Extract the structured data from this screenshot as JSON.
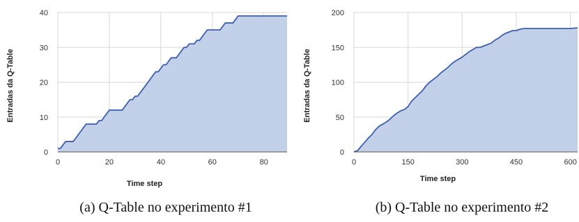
{
  "chart_data": [
    {
      "type": "area",
      "xlabel": "Time step",
      "ylabel": "Entradas da Q-Table",
      "caption": "(a)  Q-Table no experimento #1",
      "xlim": [
        0,
        89
      ],
      "ylim": [
        0,
        40
      ],
      "xticks": [
        0,
        20,
        40,
        60,
        80
      ],
      "yticks": [
        0,
        10,
        20,
        30,
        40
      ],
      "grid": true,
      "colors": {
        "line": "#3b5fa8",
        "fill": "#c3d0ea",
        "grid": "#d8d8d8"
      },
      "series": [
        {
          "x": [
            0,
            1,
            2,
            3,
            4,
            5,
            6,
            7,
            8,
            9,
            10,
            11,
            12,
            13,
            14,
            15,
            16,
            17,
            18,
            19,
            20,
            21,
            22,
            23,
            24,
            25,
            26,
            27,
            28,
            29,
            30,
            31,
            32,
            33,
            34,
            35,
            36,
            37,
            38,
            39,
            40,
            41,
            42,
            43,
            44,
            45,
            46,
            47,
            48,
            49,
            50,
            51,
            52,
            53,
            54,
            55,
            56,
            57,
            58,
            59,
            60,
            61,
            62,
            63,
            64,
            65,
            66,
            67,
            68,
            69,
            70,
            71,
            72,
            73,
            74,
            75,
            76,
            77,
            78,
            79,
            80,
            81,
            82,
            83,
            84,
            85,
            86,
            87,
            88,
            89
          ],
          "y": [
            1,
            1,
            2,
            3,
            3,
            3,
            3,
            4,
            5,
            6,
            7,
            8,
            8,
            8,
            8,
            8,
            9,
            9,
            10,
            11,
            12,
            12,
            12,
            12,
            12,
            12,
            13,
            14,
            15,
            15,
            16,
            16,
            17,
            18,
            19,
            20,
            21,
            22,
            23,
            23,
            24,
            25,
            25,
            26,
            27,
            27,
            27,
            28,
            29,
            30,
            30,
            31,
            31,
            31,
            32,
            32,
            33,
            34,
            35,
            35,
            35,
            35,
            35,
            35,
            36,
            37,
            37,
            37,
            37,
            38,
            39,
            39,
            39,
            39,
            39,
            39,
            39,
            39,
            39,
            39,
            39,
            39,
            39,
            39,
            39,
            39,
            39,
            39,
            39,
            39
          ]
        }
      ]
    },
    {
      "type": "area",
      "xlabel": "Time step",
      "ylabel": "Entradas da Q-Table",
      "caption": "(b)  Q-Table no experimento #2",
      "xlim": [
        0,
        620
      ],
      "ylim": [
        0,
        200
      ],
      "xticks": [
        0,
        150,
        300,
        450,
        600
      ],
      "yticks": [
        0,
        50,
        100,
        150,
        200
      ],
      "grid": true,
      "colors": {
        "line": "#3b5fa8",
        "fill": "#c3d0ea",
        "grid": "#d8d8d8"
      },
      "series": [
        {
          "x": [
            0,
            10,
            20,
            30,
            40,
            50,
            60,
            70,
            80,
            90,
            100,
            110,
            120,
            130,
            140,
            150,
            160,
            170,
            180,
            190,
            200,
            210,
            220,
            230,
            240,
            250,
            260,
            270,
            280,
            290,
            300,
            310,
            320,
            330,
            340,
            350,
            360,
            370,
            380,
            390,
            400,
            410,
            420,
            430,
            440,
            450,
            460,
            470,
            480,
            490,
            500,
            520,
            540,
            560,
            580,
            600,
            620
          ],
          "y": [
            0,
            2,
            8,
            14,
            20,
            25,
            32,
            37,
            40,
            43,
            47,
            52,
            56,
            59,
            61,
            65,
            73,
            78,
            83,
            88,
            95,
            100,
            104,
            108,
            113,
            117,
            121,
            126,
            130,
            133,
            136,
            140,
            144,
            147,
            150,
            150,
            152,
            154,
            156,
            160,
            163,
            167,
            170,
            172,
            174,
            174,
            176,
            177,
            177,
            177,
            177,
            177,
            177,
            177,
            177,
            177,
            178
          ]
        }
      ]
    }
  ]
}
